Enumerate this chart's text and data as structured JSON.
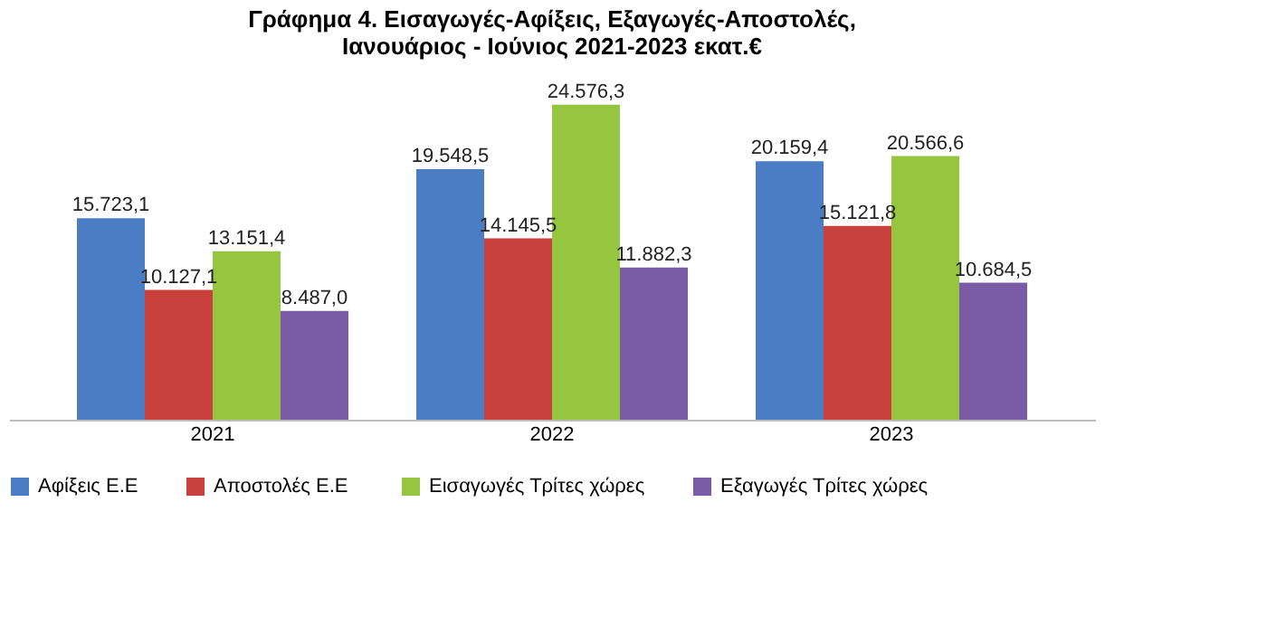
{
  "chart_data": {
    "type": "bar",
    "title": [
      "Γράφημα 4. Εισαγωγές-Αφίξεις, Εξαγωγές-Αποστολές,",
      "Ιανουάριος - Ιούνιος 2021-2023 εκατ.€"
    ],
    "categories": [
      "2021",
      "2022",
      "2023"
    ],
    "series": [
      {
        "name": "Αφίξεις Ε.Ε",
        "color": "#4a7dc4",
        "values": [
          15723.1,
          19548.5,
          20159.4
        ],
        "value_labels": [
          "15.723,1",
          "19.548,5",
          "20.159,4"
        ]
      },
      {
        "name": "Αποστολές  Ε.Ε",
        "color": "#c9413d",
        "values": [
          10127.1,
          14145.5,
          15121.8
        ],
        "value_labels": [
          "10.127,1",
          "14.145,5",
          "15.121,8"
        ]
      },
      {
        "name": "Εισαγωγές Τρίτες χώρες",
        "color": "#96c53f",
        "values": [
          13151.4,
          24576.3,
          20566.6
        ],
        "value_labels": [
          "13.151,4",
          "24.576,3",
          "20.566,6"
        ]
      },
      {
        "name": "Εξαγωγές Τρίτες χώρες",
        "color": "#7a5ba6",
        "values": [
          8487.0,
          11882.3,
          10684.5
        ],
        "value_labels": [
          "8.487,0",
          "11.882,3",
          "10.684,5"
        ]
      }
    ],
    "legend": "bottom",
    "grid": false
  }
}
